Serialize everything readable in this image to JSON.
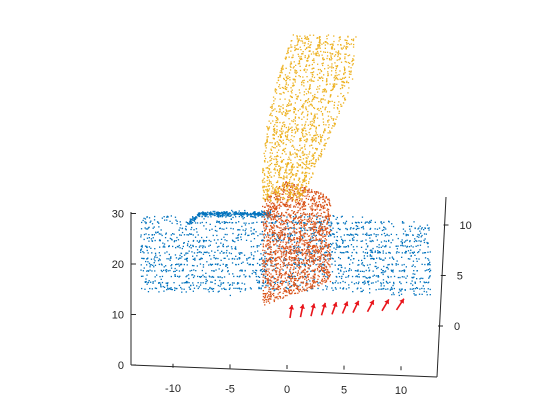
{
  "chart_data": {
    "type": "scatter",
    "title": "",
    "xlabel": "",
    "ylabel": "",
    "zlabel": "",
    "grid": false,
    "legend": "none",
    "x_axis": {
      "ticks": [
        -10,
        -5,
        0,
        5,
        10
      ],
      "labels": [
        "-10",
        "-5",
        "0",
        "5",
        "10"
      ],
      "range": [
        -14,
        13
      ]
    },
    "y_axis": {
      "ticks": [
        0,
        10,
        20,
        30
      ],
      "labels": [
        "0",
        "10",
        "20",
        "30"
      ],
      "range": [
        0,
        31
      ]
    },
    "z_axis": {
      "ticks": [
        0,
        5,
        10
      ],
      "labels": [
        "0",
        "5",
        "10"
      ],
      "range": [
        -1.5,
        12.5
      ]
    },
    "series": [
      {
        "color": "#0072BD",
        "shape": "wide-band",
        "x_range": [
          -13,
          12
        ],
        "y_range": [
          12,
          31
        ],
        "note_values_center": [
          0,
          21
        ]
      },
      {
        "color": "#EDB120",
        "shape": "fan",
        "x_range": [
          -2,
          7
        ],
        "y_range": [
          24,
          65
        ]
      },
      {
        "color": "#D95319",
        "shape": "block",
        "x_range": [
          -2.2,
          3.5
        ],
        "y_range": [
          12,
          31
        ]
      },
      {
        "color": "#E8151B",
        "shape": "arrows",
        "count": 10,
        "x_range": [
          0,
          9
        ],
        "y_value": 10
      }
    ]
  }
}
